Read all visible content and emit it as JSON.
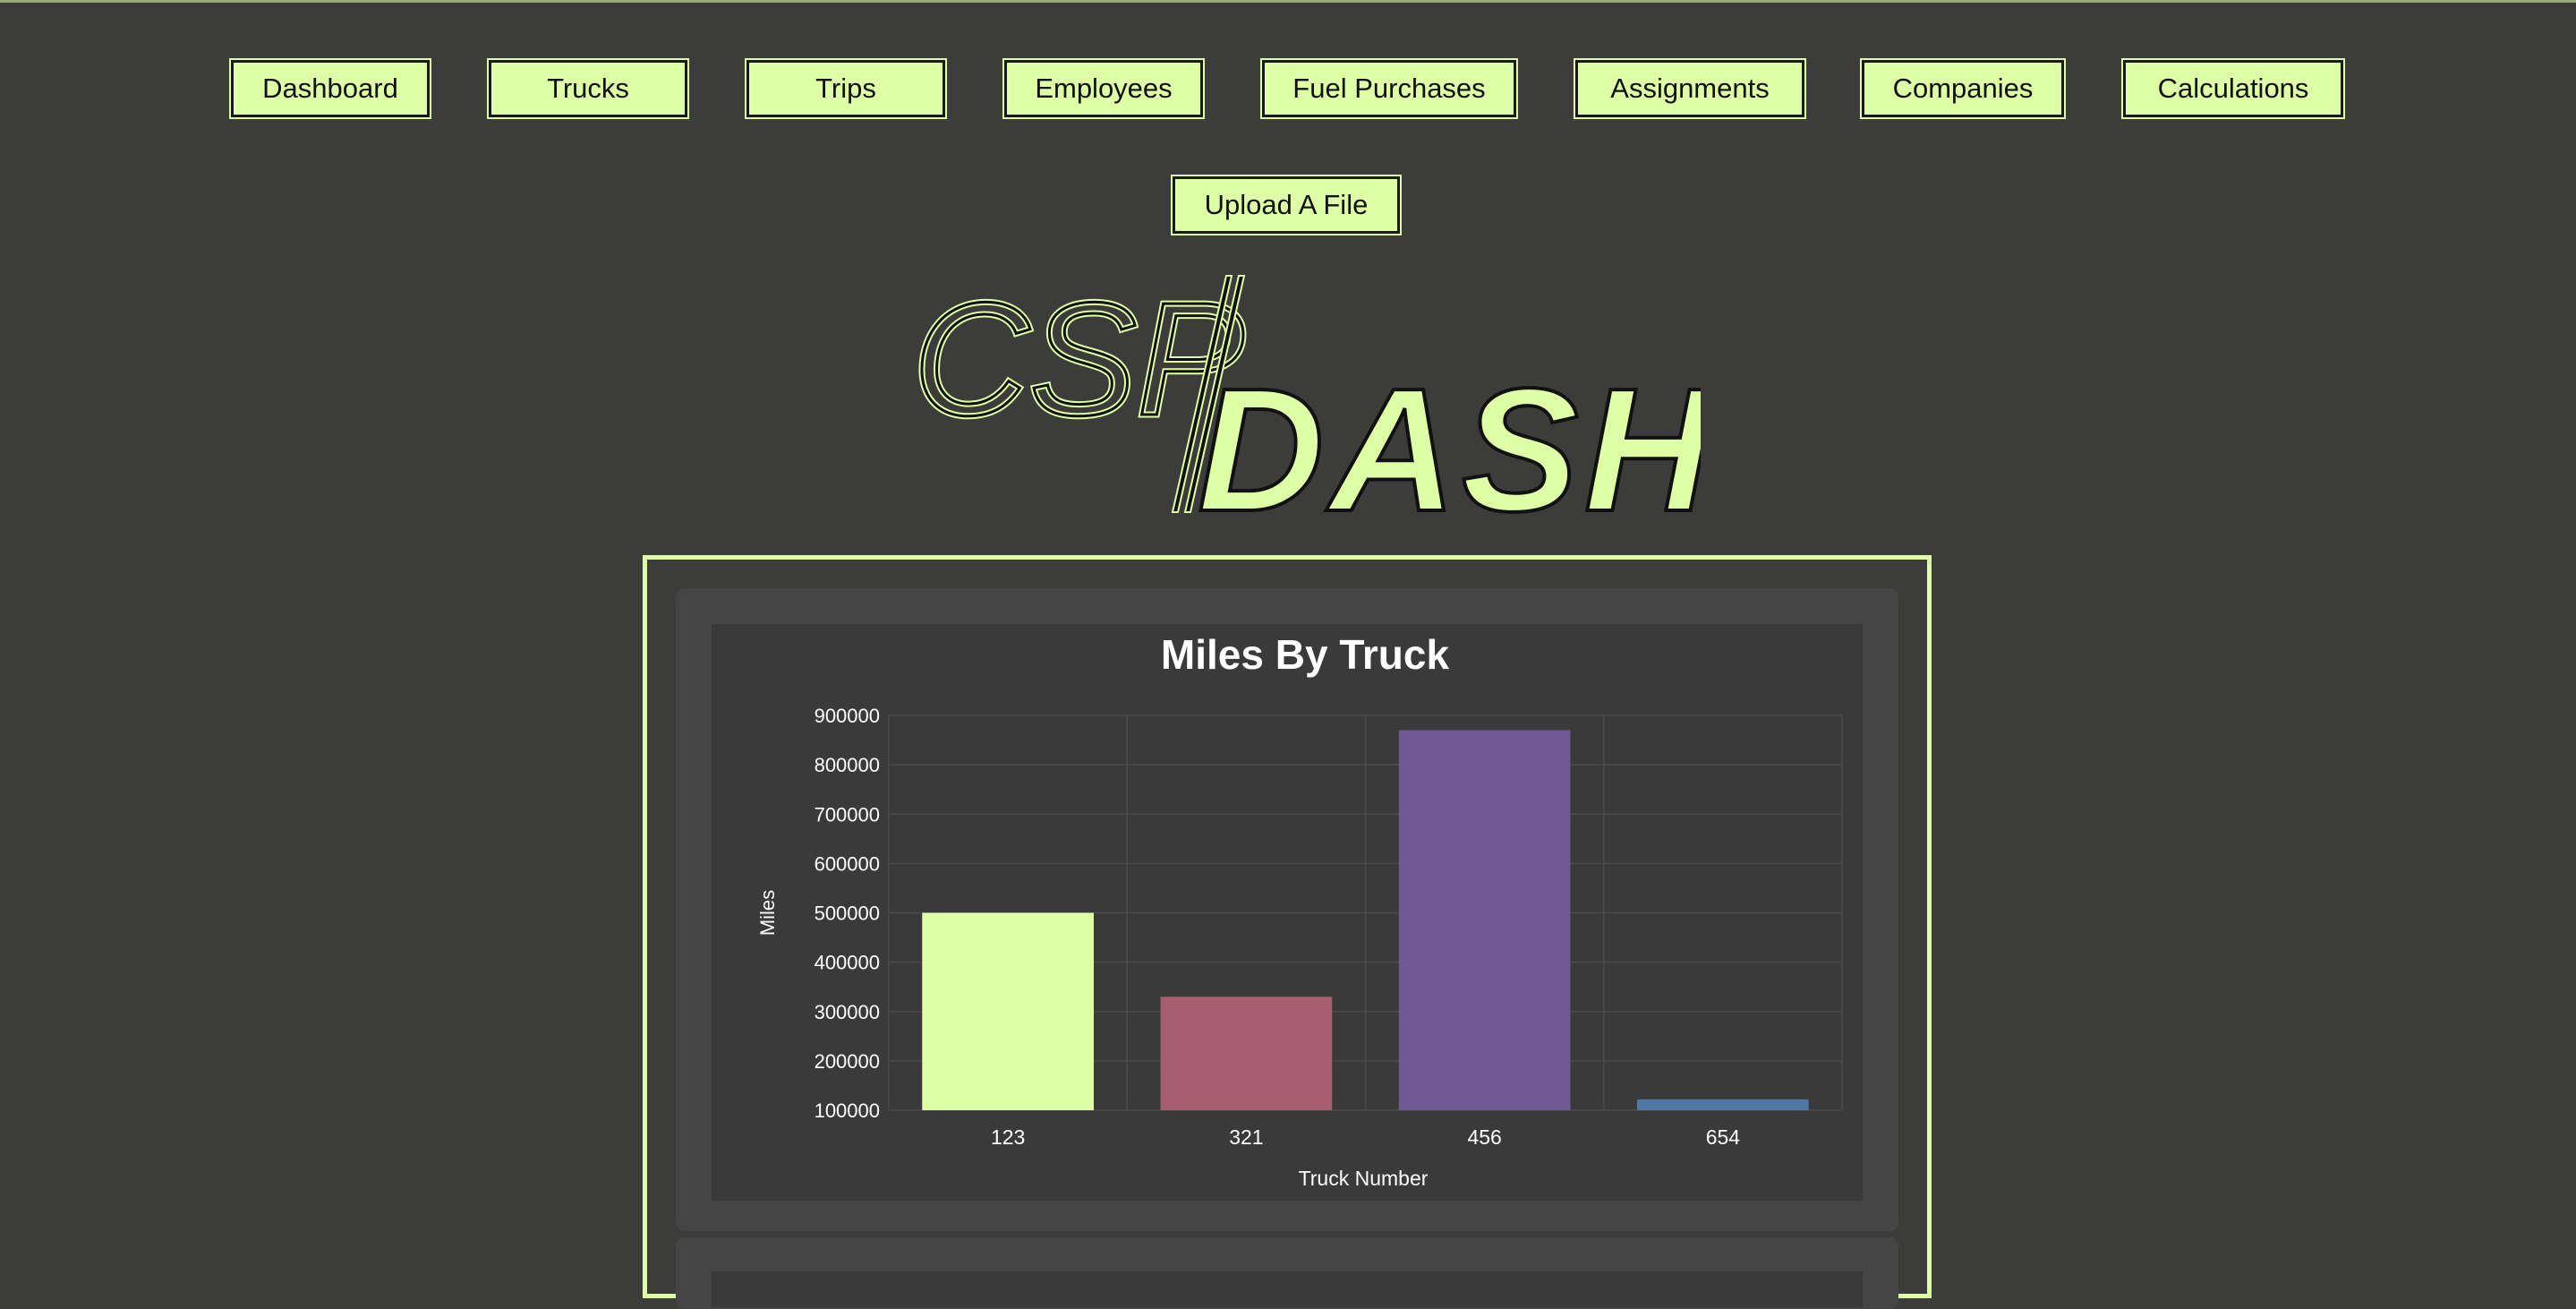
{
  "nav": {
    "row1": [
      "Dashboard",
      "Trucks",
      "Trips",
      "Employees",
      "Fuel Purchases",
      "Assignments",
      "Companies",
      "Calculations"
    ],
    "upload_label": "Upload A File"
  },
  "logo": {
    "left_text": "CSP",
    "right_text": "DASH"
  },
  "colors": {
    "accent": "#deffa6",
    "background": "#3c3c3b"
  },
  "chart_data": {
    "type": "bar",
    "title": "Miles By Truck",
    "xlabel": "Truck Number",
    "ylabel": "Miles",
    "categories": [
      "123",
      "321",
      "456",
      "654"
    ],
    "values": [
      500000,
      330000,
      870000,
      122000
    ],
    "colors": [
      "#deffa6",
      "#a65d6e",
      "#6f5994",
      "#4f78a6"
    ],
    "ylim": [
      100000,
      900000
    ],
    "yticks": [
      "900000",
      "800000",
      "700000",
      "600000",
      "500000",
      "400000",
      "300000",
      "200000",
      "100000"
    ],
    "grid": true,
    "legend": "none"
  }
}
